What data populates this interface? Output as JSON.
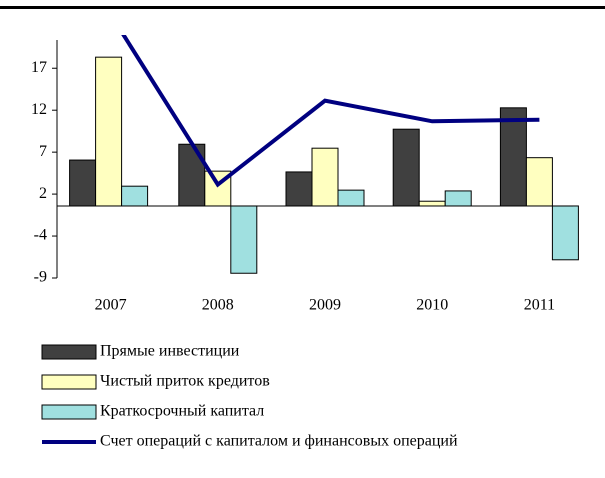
{
  "chart_data": {
    "type": "bar",
    "categories": [
      "2007",
      "2008",
      "2009",
      "2010",
      "2011"
    ],
    "series": [
      {
        "name": "Прямые инвестиции",
        "color": "#404040",
        "values": [
          5.8,
          7.8,
          4.3,
          9.7,
          12.4
        ]
      },
      {
        "name": "Чистый приток кредитов",
        "color": "#ffffc0",
        "values": [
          18.8,
          4.4,
          7.3,
          0.6,
          6.1
        ]
      },
      {
        "name": "Краткосрочный капитал",
        "color": "#a0e0e0",
        "values": [
          2.5,
          -8.5,
          2.0,
          1.9,
          -6.8
        ]
      },
      {
        "name": "Счет операций с капиталом и финансовых операций",
        "color": "#000080",
        "type": "line",
        "values": [
          24.2,
          2.7,
          13.3,
          10.7,
          10.9
        ]
      }
    ],
    "ylim": [
      -9.1,
      21.6
    ],
    "yticks": [
      {
        "value": -9.1,
        "label": "-9"
      },
      {
        "value": -3.8,
        "label": "-4"
      },
      {
        "value": 1.5,
        "label": "2"
      },
      {
        "value": 6.8,
        "label": "7"
      },
      {
        "value": 12.1,
        "label": "12"
      },
      {
        "value": 17.4,
        "label": "17"
      }
    ],
    "legend": "bottom"
  }
}
